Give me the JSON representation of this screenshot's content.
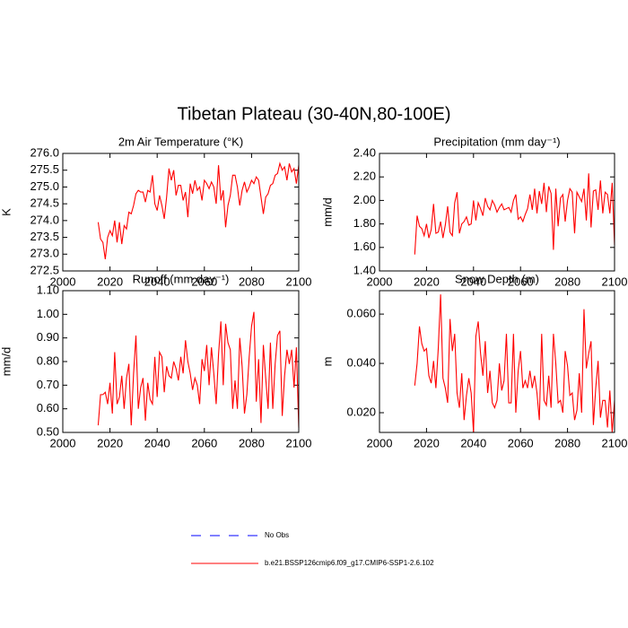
{
  "title": "Tibetan Plateau (30-40N,80-100E)",
  "legend": [
    {
      "name": "No Obs",
      "color": "#0000ff",
      "style": "dashed"
    },
    {
      "name": "b.e21.BSSP126cmip6.f09_g17.CMIP6-SSP1-2.6.102",
      "color": "#ff0000",
      "style": "solid"
    }
  ],
  "chart_data": [
    {
      "type": "line",
      "title": "2m Air Temperature (°K)",
      "y_label": "K",
      "xlim": [
        2000,
        2100
      ],
      "xticks": [
        2000,
        2020,
        2040,
        2060,
        2080,
        2100
      ],
      "ylim": [
        272.5,
        276
      ],
      "yticks": [
        272.5,
        {
          "value": 273,
          "label": "273.0"
        },
        273.5,
        {
          "value": 274,
          "label": "274.0"
        },
        274.5,
        {
          "value": 275,
          "label": "275.0"
        },
        275.5,
        {
          "value": 276,
          "label": "276.0"
        }
      ],
      "x": [
        2015,
        2016,
        2017,
        2018,
        2019,
        2020,
        2021,
        2022,
        2023,
        2024,
        2025,
        2026,
        2027,
        2028,
        2029,
        2030,
        2031,
        2032,
        2033,
        2034,
        2035,
        2036,
        2037,
        2038,
        2039,
        2040,
        2041,
        2042,
        2043,
        2044,
        2045,
        2046,
        2047,
        2048,
        2049,
        2050,
        2051,
        2052,
        2053,
        2054,
        2055,
        2056,
        2057,
        2058,
        2059,
        2060,
        2061,
        2062,
        2063,
        2064,
        2065,
        2066,
        2067,
        2068,
        2069,
        2070,
        2071,
        2072,
        2073,
        2074,
        2075,
        2076,
        2077,
        2078,
        2079,
        2080,
        2081,
        2082,
        2083,
        2084,
        2085,
        2086,
        2087,
        2088,
        2089,
        2090,
        2091,
        2092,
        2093,
        2094,
        2095,
        2096,
        2097,
        2098,
        2099,
        2100
      ],
      "series": [
        {
          "color": "#ff0000",
          "values": [
            273.95,
            273.45,
            273.35,
            272.85,
            273.5,
            273.7,
            273.55,
            274.0,
            273.35,
            273.95,
            273.3,
            273.85,
            273.75,
            274.25,
            274.2,
            274.45,
            274.8,
            274.9,
            274.85,
            274.85,
            274.55,
            274.9,
            274.85,
            275.35,
            274.5,
            274.3,
            274.75,
            274.45,
            274.05,
            274.7,
            275.55,
            275.2,
            275.5,
            274.75,
            275.05,
            275.05,
            274.6,
            274.85,
            274.1,
            275.1,
            274.8,
            275.2,
            274.9,
            275.0,
            274.6,
            275.2,
            275.1,
            274.95,
            275.15,
            275.0,
            274.5,
            275.65,
            274.6,
            274.9,
            273.8,
            274.45,
            274.75,
            275.35,
            275.35,
            275.0,
            274.45,
            274.9,
            275.15,
            274.85,
            275.0,
            275.2,
            275.1,
            275.3,
            275.2,
            274.7,
            274.2,
            274.7,
            274.8,
            275.05,
            275.1,
            275.35,
            275.4,
            275.7,
            275.5,
            275.6,
            275.2,
            275.7,
            275.45,
            275.55,
            275.1,
            275.65
          ]
        }
      ]
    },
    {
      "type": "line",
      "title": "Precipitation (mm day⁻¹)",
      "y_label": "mm/d",
      "xlim": [
        2000,
        2100
      ],
      "xticks": [
        2000,
        2020,
        2040,
        2060,
        2080,
        2100
      ],
      "ylim": [
        1.4,
        2.4
      ],
      "yticks": [
        {
          "value": 1.4,
          "label": "1.40"
        },
        {
          "value": 1.6,
          "label": "1.60"
        },
        {
          "value": 1.8,
          "label": "1.80"
        },
        {
          "value": 2.0,
          "label": "2.00"
        },
        {
          "value": 2.2,
          "label": "2.20"
        },
        {
          "value": 2.4,
          "label": "2.40"
        }
      ],
      "x": [
        2015,
        2016,
        2017,
        2018,
        2019,
        2020,
        2021,
        2022,
        2023,
        2024,
        2025,
        2026,
        2027,
        2028,
        2029,
        2030,
        2031,
        2032,
        2033,
        2034,
        2035,
        2036,
        2037,
        2038,
        2039,
        2040,
        2041,
        2042,
        2043,
        2044,
        2045,
        2046,
        2047,
        2048,
        2049,
        2050,
        2051,
        2052,
        2053,
        2054,
        2055,
        2056,
        2057,
        2058,
        2059,
        2060,
        2061,
        2062,
        2063,
        2064,
        2065,
        2066,
        2067,
        2068,
        2069,
        2070,
        2071,
        2072,
        2073,
        2074,
        2075,
        2076,
        2077,
        2078,
        2079,
        2080,
        2081,
        2082,
        2083,
        2084,
        2085,
        2086,
        2087,
        2088,
        2089,
        2090,
        2091,
        2092,
        2093,
        2094,
        2095,
        2096,
        2097,
        2098,
        2099,
        2100
      ],
      "series": [
        {
          "color": "#ff0000",
          "values": [
            1.54,
            1.87,
            1.78,
            1.76,
            1.7,
            1.8,
            1.68,
            1.75,
            1.97,
            1.72,
            1.73,
            1.82,
            1.68,
            1.79,
            1.95,
            1.73,
            1.7,
            1.98,
            2.07,
            1.72,
            1.8,
            1.82,
            1.86,
            1.79,
            1.8,
            2.0,
            1.83,
            1.98,
            1.93,
            1.87,
            2.02,
            1.95,
            1.92,
            2.0,
            1.96,
            1.9,
            1.94,
            1.97,
            1.92,
            1.93,
            1.94,
            1.9,
            2.0,
            2.05,
            1.84,
            1.86,
            1.82,
            1.88,
            1.93,
            2.05,
            1.92,
            2.1,
            1.89,
            2.08,
            1.97,
            2.15,
            1.9,
            2.12,
            2.06,
            1.58,
            2.1,
            1.78,
            2.02,
            2.05,
            1.82,
            2.0,
            2.1,
            2.07,
            1.72,
            2.07,
            2.03,
            1.99,
            2.1,
            1.83,
            2.23,
            1.77,
            2.08,
            2.09,
            1.92,
            2.17,
            1.89,
            2.07,
            2.05,
            1.89,
            2.15,
            1.62
          ]
        }
      ]
    },
    {
      "type": "line",
      "title": "Runoff (mm day⁻¹)",
      "y_label": "mm/d",
      "xlim": [
        2000,
        2100
      ],
      "xticks": [
        2000,
        2020,
        2040,
        2060,
        2080,
        2100
      ],
      "ylim": [
        0.5,
        1.1
      ],
      "yticks": [
        {
          "value": 0.5,
          "label": "0.50"
        },
        {
          "value": 0.6,
          "label": "0.60"
        },
        {
          "value": 0.7,
          "label": "0.70"
        },
        {
          "value": 0.8,
          "label": "0.80"
        },
        {
          "value": 0.9,
          "label": "0.90"
        },
        {
          "value": 1.0,
          "label": "1.00"
        },
        {
          "value": 1.1,
          "label": "1.10"
        }
      ],
      "x": [
        2015,
        2016,
        2017,
        2018,
        2019,
        2020,
        2021,
        2022,
        2023,
        2024,
        2025,
        2026,
        2027,
        2028,
        2029,
        2030,
        2031,
        2032,
        2033,
        2034,
        2035,
        2036,
        2037,
        2038,
        2039,
        2040,
        2041,
        2042,
        2043,
        2044,
        2045,
        2046,
        2047,
        2048,
        2049,
        2050,
        2051,
        2052,
        2053,
        2054,
        2055,
        2056,
        2057,
        2058,
        2059,
        2060,
        2061,
        2062,
        2063,
        2064,
        2065,
        2066,
        2067,
        2068,
        2069,
        2070,
        2071,
        2072,
        2073,
        2074,
        2075,
        2076,
        2077,
        2078,
        2079,
        2080,
        2081,
        2082,
        2083,
        2084,
        2085,
        2086,
        2087,
        2088,
        2089,
        2090,
        2091,
        2092,
        2093,
        2094,
        2095,
        2096,
        2097,
        2098,
        2099,
        2100
      ],
      "series": [
        {
          "color": "#ff0000",
          "values": [
            0.53,
            0.66,
            0.66,
            0.67,
            0.62,
            0.71,
            0.58,
            0.84,
            0.62,
            0.65,
            0.74,
            0.6,
            0.73,
            0.79,
            0.53,
            0.75,
            0.91,
            0.6,
            0.69,
            0.73,
            0.55,
            0.71,
            0.64,
            0.62,
            0.82,
            0.65,
            0.84,
            0.82,
            0.67,
            0.78,
            0.74,
            0.73,
            0.8,
            0.77,
            0.72,
            0.82,
            0.75,
            0.89,
            0.8,
            0.75,
            0.68,
            0.73,
            0.7,
            0.62,
            0.81,
            0.76,
            0.87,
            0.7,
            0.86,
            0.75,
            0.62,
            0.83,
            0.97,
            0.7,
            0.96,
            0.88,
            0.85,
            0.6,
            0.72,
            0.6,
            0.9,
            0.78,
            0.58,
            0.66,
            0.82,
            0.95,
            1.01,
            0.63,
            0.81,
            0.54,
            0.87,
            0.73,
            0.6,
            0.88,
            0.6,
            0.79,
            0.91,
            0.93,
            0.57,
            0.74,
            0.85,
            0.79,
            0.85,
            0.69,
            0.86,
            0.52
          ]
        }
      ]
    },
    {
      "type": "line",
      "title": "Snow Depth (m)",
      "y_label": "m",
      "xlim": [
        2000,
        2100
      ],
      "xticks": [
        2000,
        2020,
        2040,
        2060,
        2080,
        2100
      ],
      "ylim": [
        0.012,
        0.0695
      ],
      "yticks": [
        {
          "value": 0.02,
          "label": "0.020"
        },
        {
          "value": 0.04,
          "label": "0.040"
        },
        {
          "value": 0.06,
          "label": "0.060"
        }
      ],
      "x": [
        2015,
        2016,
        2017,
        2018,
        2019,
        2020,
        2021,
        2022,
        2023,
        2024,
        2025,
        2026,
        2027,
        2028,
        2029,
        2030,
        2031,
        2032,
        2033,
        2034,
        2035,
        2036,
        2037,
        2038,
        2039,
        2040,
        2041,
        2042,
        2043,
        2044,
        2045,
        2046,
        2047,
        2048,
        2049,
        2050,
        2051,
        2052,
        2053,
        2054,
        2055,
        2056,
        2057,
        2058,
        2059,
        2060,
        2061,
        2062,
        2063,
        2064,
        2065,
        2066,
        2067,
        2068,
        2069,
        2070,
        2071,
        2072,
        2073,
        2074,
        2075,
        2076,
        2077,
        2078,
        2079,
        2080,
        2081,
        2082,
        2083,
        2084,
        2085,
        2086,
        2087,
        2088,
        2089,
        2090,
        2091,
        2092,
        2093,
        2094,
        2095,
        2096,
        2097,
        2098,
        2099,
        2100
      ],
      "series": [
        {
          "color": "#ff0000",
          "values": [
            0.031,
            0.04,
            0.055,
            0.048,
            0.045,
            0.046,
            0.035,
            0.032,
            0.041,
            0.03,
            0.046,
            0.068,
            0.034,
            0.03,
            0.024,
            0.058,
            0.045,
            0.052,
            0.028,
            0.022,
            0.036,
            0.017,
            0.027,
            0.034,
            0.028,
            0.012,
            0.051,
            0.057,
            0.044,
            0.035,
            0.049,
            0.028,
            0.037,
            0.024,
            0.022,
            0.025,
            0.04,
            0.029,
            0.033,
            0.052,
            0.024,
            0.024,
            0.052,
            0.02,
            0.037,
            0.045,
            0.03,
            0.033,
            0.03,
            0.037,
            0.03,
            0.035,
            0.028,
            0.017,
            0.052,
            0.025,
            0.023,
            0.035,
            0.022,
            0.052,
            0.04,
            0.024,
            0.025,
            0.02,
            0.045,
            0.039,
            0.027,
            0.028,
            0.017,
            0.021,
            0.036,
            0.02,
            0.062,
            0.038,
            0.044,
            0.049,
            0.015,
            0.03,
            0.041,
            0.018,
            0.025,
            0.025,
            0.014,
            0.029,
            0.012,
            0.025
          ]
        }
      ]
    }
  ]
}
